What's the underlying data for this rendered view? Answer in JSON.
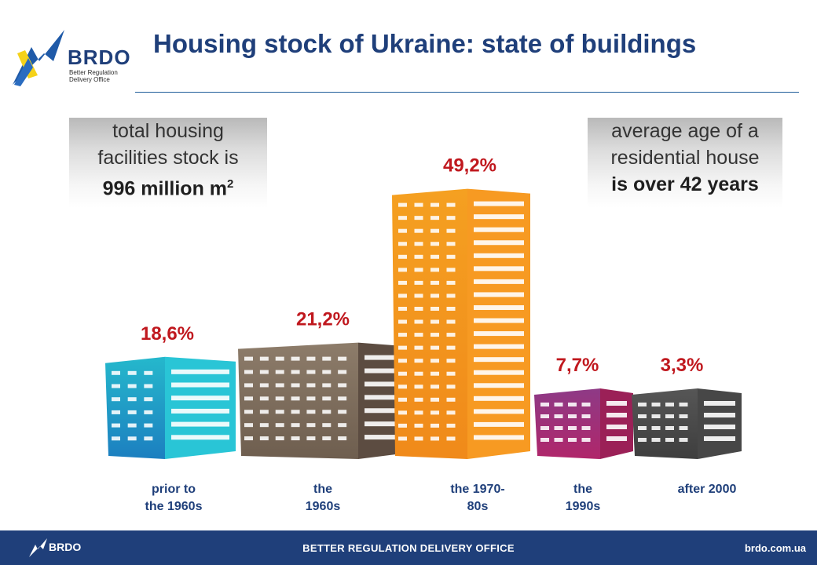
{
  "header": {
    "logo_text": "BRDO",
    "logo_subtitle_line1": "Better Regulation",
    "logo_subtitle_line2": "Delivery Office",
    "title": "Housing stock of Ukraine: state of buildings"
  },
  "left_note": {
    "line1": "total housing",
    "line2": "facilities stock is",
    "line3": "996 million m",
    "line3_sup": "2"
  },
  "right_note": {
    "line1": "average age of a",
    "line2": "residential house",
    "line3": "is over 42 years"
  },
  "chart_data": {
    "type": "bar",
    "categories": [
      "prior to\nthe 1960s",
      "the\n1960s",
      "the 1970-\n80s",
      "the\n1990s",
      "after 2000"
    ],
    "values": [
      18.6,
      21.2,
      49.2,
      7.7,
      3.3
    ],
    "value_labels": [
      "18,6%",
      "21,2%",
      "49,2%",
      "7,7%",
      "3,3%"
    ],
    "unit": "%",
    "title": "",
    "xlabel": "",
    "ylabel": "",
    "colors": {
      "front": [
        "#25b8cc",
        "#8d7c6a",
        "#f5a021",
        "#8e3a86",
        "#565656"
      ],
      "front_dark": [
        "#1c7fc0",
        "#6e5e4f",
        "#f08a1a",
        "#b0266a",
        "#3e3e3e"
      ],
      "side": [
        "#29c5d6",
        "#5c4c41",
        "#f79a22",
        "#9b2057",
        "#474747"
      ],
      "label": "#c0181e",
      "category_label": "#1f3f7a"
    }
  },
  "footer": {
    "logo_text": "BRDO",
    "center_text": "BETTER REGULATION DELIVERY OFFICE",
    "url": "brdo.com.ua"
  }
}
